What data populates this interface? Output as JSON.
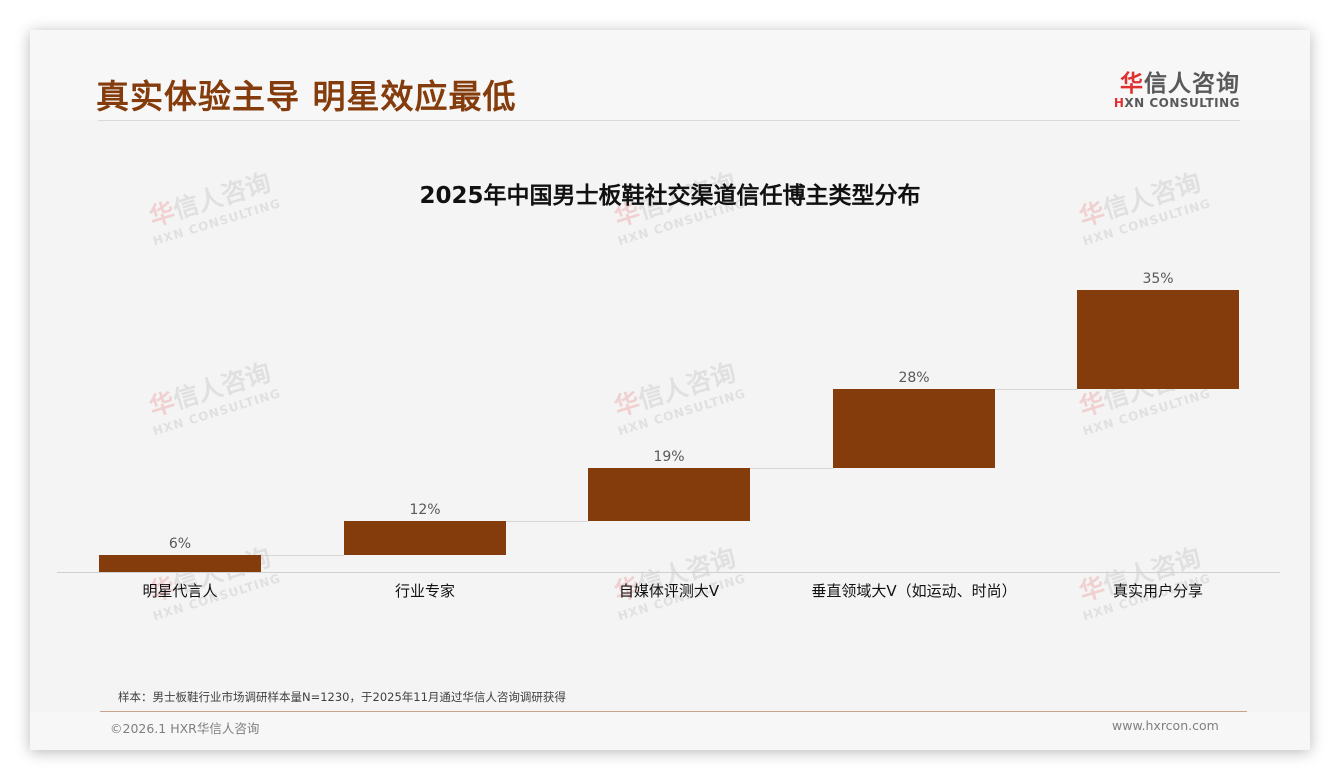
{
  "header": {
    "title": "真实体验主导 明星效应最低",
    "logo": {
      "cn_first": "华",
      "cn_rest": "信人咨询",
      "en_first": "H",
      "en_rest": "XN CONSULTING"
    }
  },
  "watermark": {
    "cn_first": "华",
    "cn_rest": "信人咨询",
    "en": "HXN CONSULTING"
  },
  "chart_data": {
    "type": "bar",
    "subtype": "waterfall",
    "title": "2025年中国男士板鞋社交渠道信任博主类型分布",
    "categories": [
      "明星代言人",
      "行业专家",
      "自媒体评测大V",
      "垂直领域大V（如运动、时尚）",
      "真实用户分享"
    ],
    "values": [
      6,
      12,
      19,
      28,
      35
    ],
    "value_labels": [
      "6%",
      "12%",
      "19%",
      "28%",
      "35%"
    ],
    "cumulative_start": [
      0,
      6,
      18,
      37,
      65
    ],
    "cumulative_end": [
      6,
      18,
      37,
      65,
      100
    ],
    "xlabel": "",
    "ylabel": "",
    "ylim": [
      0,
      100
    ],
    "grid": false,
    "legend": "none",
    "bar_color": "#843c0c"
  },
  "footer": {
    "note": "样本：男士板鞋行业市场调研样本量N=1230，于2025年11月通过华信人咨询调研获得",
    "copyright": "©2026.1 HXR华信人咨询",
    "website": "www.hxrcon.com"
  },
  "colors": {
    "accent": "#843c0c",
    "logo_red": "#e03131",
    "background": "#f4f4f4"
  }
}
